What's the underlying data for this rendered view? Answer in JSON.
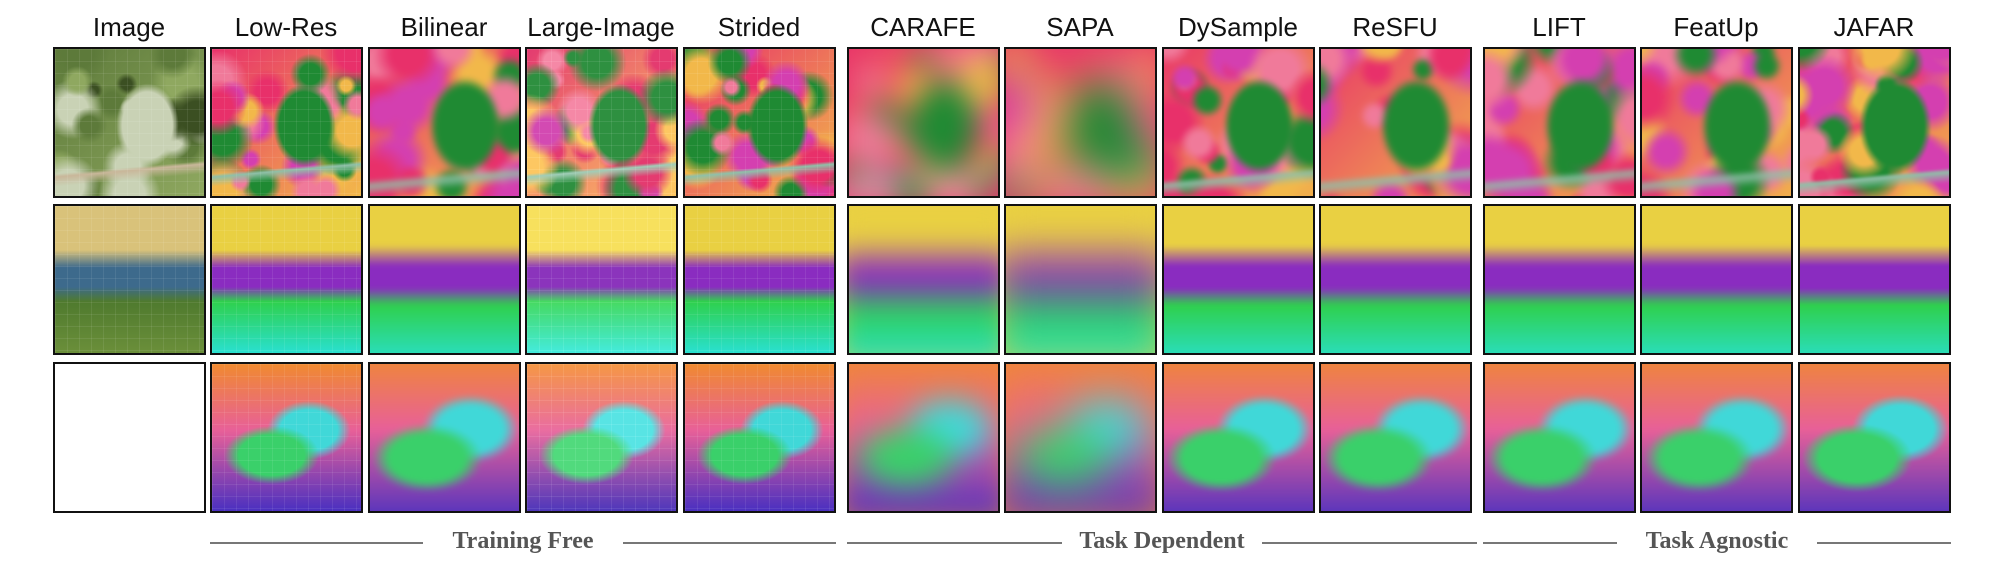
{
  "figure": {
    "columns": [
      {
        "id": "image",
        "label": "Image"
      },
      {
        "id": "low-res",
        "label": "Low-Res"
      },
      {
        "id": "bilinear",
        "label": "Bilinear"
      },
      {
        "id": "large-image",
        "label": "Large-Image"
      },
      {
        "id": "strided",
        "label": "Strided"
      },
      {
        "id": "carafe",
        "label": "CARAFE"
      },
      {
        "id": "sapa",
        "label": "SAPA"
      },
      {
        "id": "dysample",
        "label": "DySample"
      },
      {
        "id": "resfu",
        "label": "ReSFU"
      },
      {
        "id": "lift",
        "label": "LIFT"
      },
      {
        "id": "featup",
        "label": "FeatUp"
      },
      {
        "id": "jafar",
        "label": "JAFAR"
      }
    ],
    "groups": [
      {
        "id": "training-free",
        "label": "Training Free"
      },
      {
        "id": "task-dependent",
        "label": "Task Dependent"
      },
      {
        "id": "task-agnostic",
        "label": "Task Agnostic"
      }
    ],
    "rows": [
      {
        "id": "eagle",
        "photo_colors": [
          "#5d7a3a",
          "#8fa860",
          "#3b4f22",
          "#c9d2b5"
        ],
        "feature_colors": [
          "#e8306a",
          "#f2b84a",
          "#d43fb0",
          "#1f8a33",
          "#f07a9a"
        ]
      },
      {
        "id": "lake",
        "photo_colors": [
          "#d9c27a",
          "#3d6a8c",
          "#4f7a2e",
          "#6b8f3a"
        ],
        "feature_colors": [
          "#e9d042",
          "#8a2cc0",
          "#2fd04d",
          "#29e0d0",
          "#b05ad8"
        ]
      },
      {
        "id": "truck",
        "photo_colors": [
          "#c8dcea",
          "#8a6a5a",
          "#c02020",
          "#7aa04a"
        ],
        "feature_colors": [
          "#f08a30",
          "#e86098",
          "#3ad06a",
          "#40d8d8",
          "#4a30c0"
        ]
      }
    ]
  }
}
